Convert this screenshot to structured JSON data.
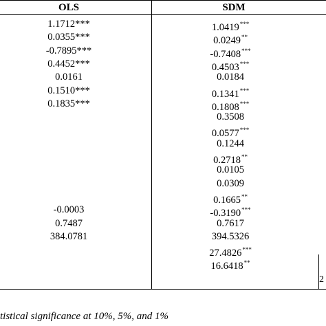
{
  "table": {
    "columns": [
      "OLS",
      "SDM"
    ],
    "rows": [
      {
        "ols": "1.1712***",
        "sdm": "1.0419",
        "sdm_sig": "***"
      },
      {
        "ols": "0.0355***",
        "sdm": "0.0249",
        "sdm_sig": "**"
      },
      {
        "ols": "-0.7895***",
        "sdm": "-0.7408",
        "sdm_sig": "***"
      },
      {
        "ols": "0.4452***",
        "sdm": "0.4503",
        "sdm_sig": "***"
      },
      {
        "ols": "0.0161",
        "sdm": "0.0184",
        "sdm_sig": ""
      },
      {
        "ols": "0.1510***",
        "sdm": "0.1341",
        "sdm_sig": "***"
      },
      {
        "ols": "0.1835***",
        "sdm": "0.1808",
        "sdm_sig": "***"
      },
      {
        "ols": "",
        "sdm": "0.3508",
        "sdm_sig": ""
      },
      {
        "ols": "",
        "sdm": "0.0577",
        "sdm_sig": "***"
      },
      {
        "ols": "",
        "sdm": "0.1244",
        "sdm_sig": ""
      },
      {
        "ols": "",
        "sdm": "0.2718",
        "sdm_sig": "**"
      },
      {
        "ols": "",
        "sdm": "0.0105",
        "sdm_sig": ""
      },
      {
        "ols": "",
        "sdm": "0.0309",
        "sdm_sig": ""
      },
      {
        "ols": "",
        "sdm": "0.1665",
        "sdm_sig": "**"
      },
      {
        "ols": "-0.0003",
        "sdm": "-0.3190",
        "sdm_sig": "***"
      },
      {
        "ols": "0.7487",
        "sdm": "0.7617",
        "sdm_sig": ""
      },
      {
        "ols": "384.0781",
        "sdm": "394.5326",
        "sdm_sig": ""
      },
      {
        "ols": "",
        "sdm": "27.4826",
        "sdm_sig": "***"
      },
      {
        "ols": "",
        "sdm": "16.6418",
        "sdm_sig": "**"
      }
    ],
    "edge_fragment": "2",
    "note": "tistical significance at 10%, 5%, and 1%"
  }
}
